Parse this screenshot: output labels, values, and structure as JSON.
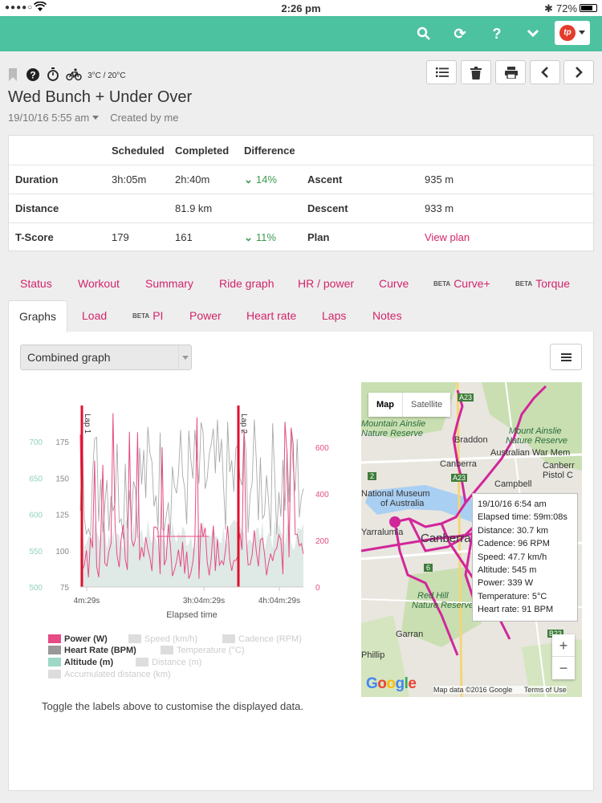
{
  "status_bar": {
    "time": "2:26 pm",
    "battery": "72%",
    "signal": "●●●●○"
  },
  "topbar": {
    "icons": [
      "search-icon",
      "refresh-icon",
      "help-icon",
      "chevron-down-icon"
    ],
    "logo": "tp"
  },
  "header": {
    "weather": "3°C / 20°C",
    "title": "Wed Bunch + Under Over",
    "date": "19/10/16 5:55 am",
    "created_by": "Created by me"
  },
  "stats": {
    "columns": [
      "Scheduled",
      "Completed",
      "Difference"
    ],
    "rows": [
      {
        "label": "Duration",
        "scheduled": "3h:05m",
        "completed": "2h:40m",
        "difference": "14%",
        "extra_label": "Ascent",
        "extra_value": "935 m"
      },
      {
        "label": "Distance",
        "scheduled": "",
        "completed": "81.9 km",
        "difference": "",
        "extra_label": "Descent",
        "extra_value": "933 m"
      },
      {
        "label": "T-Score",
        "scheduled": "179",
        "completed": "161",
        "difference": "11%",
        "extra_label": "Plan",
        "extra_value": "View plan"
      }
    ]
  },
  "tabs_row1": [
    {
      "label": "Status",
      "beta": ""
    },
    {
      "label": "Workout",
      "beta": ""
    },
    {
      "label": "Summary",
      "beta": ""
    },
    {
      "label": "Ride graph",
      "beta": ""
    },
    {
      "label": "HR / power",
      "beta": ""
    },
    {
      "label": "Curve",
      "beta": ""
    },
    {
      "label": "Curve+",
      "beta": "BETA"
    },
    {
      "label": "Torque",
      "beta": "BETA"
    }
  ],
  "tabs_row2": [
    {
      "label": "Graphs",
      "beta": "",
      "active": true
    },
    {
      "label": "Load",
      "beta": ""
    },
    {
      "label": "PI",
      "beta": "BETA"
    },
    {
      "label": "Power",
      "beta": ""
    },
    {
      "label": "Heart rate",
      "beta": ""
    },
    {
      "label": "Laps",
      "beta": ""
    },
    {
      "label": "Notes",
      "beta": ""
    }
  ],
  "graph_select": "Combined graph",
  "chart_data": {
    "type": "line",
    "title": "",
    "xlabel": "Elapsed time",
    "x_ticks": [
      "4m:29s",
      "3h:04m:29s",
      "4h:04m:29s"
    ],
    "x_ticks_mid": "3h:04m:29s",
    "y_left_outer_ticks": [
      500,
      550,
      600,
      650,
      700
    ],
    "y_left_inner_ticks": [
      75,
      100,
      125,
      150,
      175
    ],
    "y_right_ticks": [
      0,
      200,
      400,
      600
    ],
    "laps": [
      "Lap 1",
      "Lap 2"
    ],
    "series": [
      {
        "name": "Power (W)",
        "color": "#e64b85",
        "enabled": true
      },
      {
        "name": "Speed (km/h)",
        "color": "#dddddd",
        "enabled": false
      },
      {
        "name": "Cadence (RPM)",
        "color": "#dddddd",
        "enabled": false
      },
      {
        "name": "Heart Rate (BPM)",
        "color": "#999999",
        "enabled": true
      },
      {
        "name": "Temperature (°C)",
        "color": "#dddddd",
        "enabled": false
      },
      {
        "name": "Altitude (m)",
        "color": "#9ed8c8",
        "enabled": true
      },
      {
        "name": "Distance (m)",
        "color": "#dddddd",
        "enabled": false
      },
      {
        "name": "Accumulated distance (km)",
        "color": "#dddddd",
        "enabled": false
      }
    ]
  },
  "hint": "Toggle the labels above to customise the displayed data.",
  "map": {
    "tab_map": "Map",
    "tab_satellite": "Satellite",
    "labels": [
      "Mountain Ainslie",
      "Nature Reserve",
      "Braddon",
      "Canberra",
      "Mount Ainslie",
      "Nature Reserve",
      "Australian War Mem",
      "Canberr",
      "Pistol C",
      "Campbell",
      "National Museum",
      "of Australia",
      "Yarralumla",
      "Canberra",
      "Red Hill",
      "Nature Reserve",
      "Garran",
      "Phillip"
    ],
    "road_signs": [
      "A23",
      "A23",
      "2",
      "6",
      "B23"
    ],
    "tooltip": [
      "19/10/16 6:54 am",
      "Elapsed time: 59m:08s",
      "Distance: 30.7 km",
      "Cadence: 96 RPM",
      "Speed: 47.7 km/h",
      "Altitude: 545 m",
      "Power: 339 W",
      "Temperature: 5°C",
      "Heart rate: 91 BPM"
    ],
    "footer": "Map data ©2016 Google",
    "terms": "Terms of Use",
    "google": "Google"
  }
}
